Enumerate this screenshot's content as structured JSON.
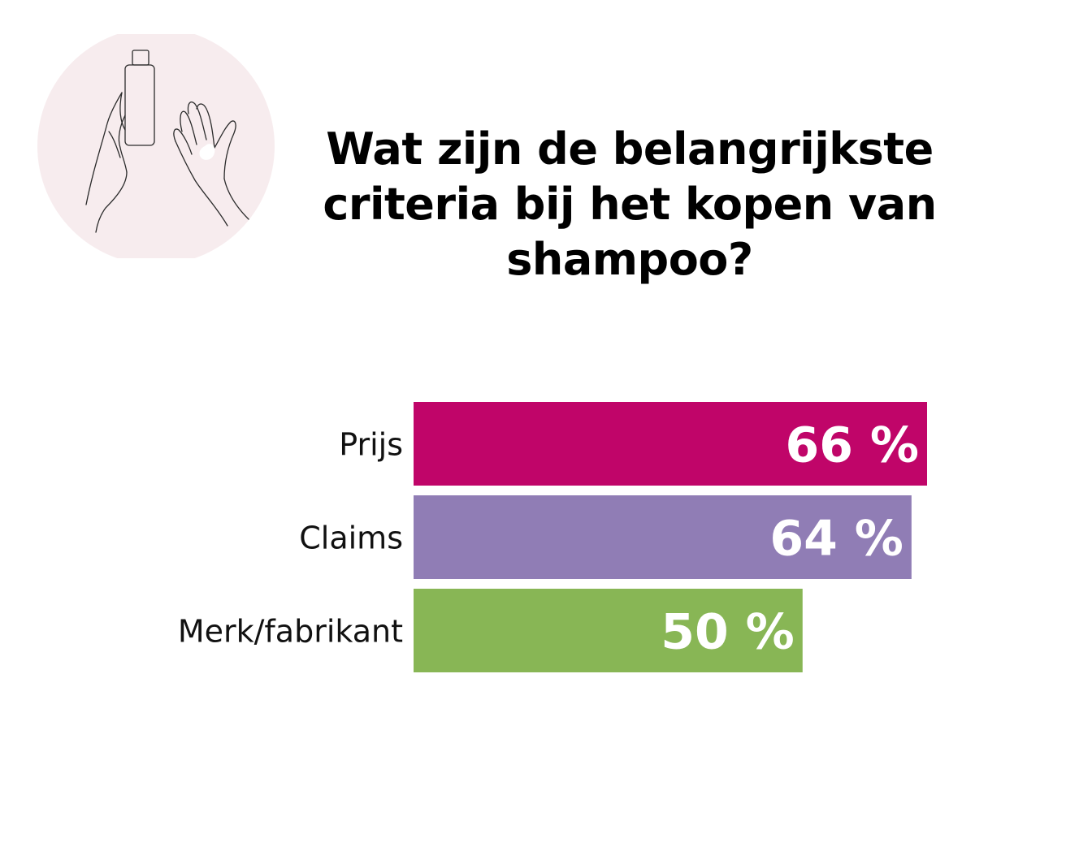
{
  "title_lines": [
    "Wat zijn de belangrijkste",
    "criteria bij het kopen van",
    "shampoo?"
  ],
  "illustration": {
    "icon": "hands-with-shampoo-bottle-icon",
    "background": "#f7ecee"
  },
  "chart_data": {
    "type": "bar",
    "orientation": "horizontal",
    "categories": [
      "Prijs",
      "Claims",
      "Merk/fabrikant"
    ],
    "values": [
      66,
      64,
      50
    ],
    "value_labels": [
      "66 %",
      "64 %",
      "50 %"
    ],
    "colors": [
      "#c00569",
      "#907db5",
      "#88b655"
    ],
    "unit": "%",
    "xlim": [
      0,
      100
    ],
    "grid": false,
    "legend": "none"
  }
}
